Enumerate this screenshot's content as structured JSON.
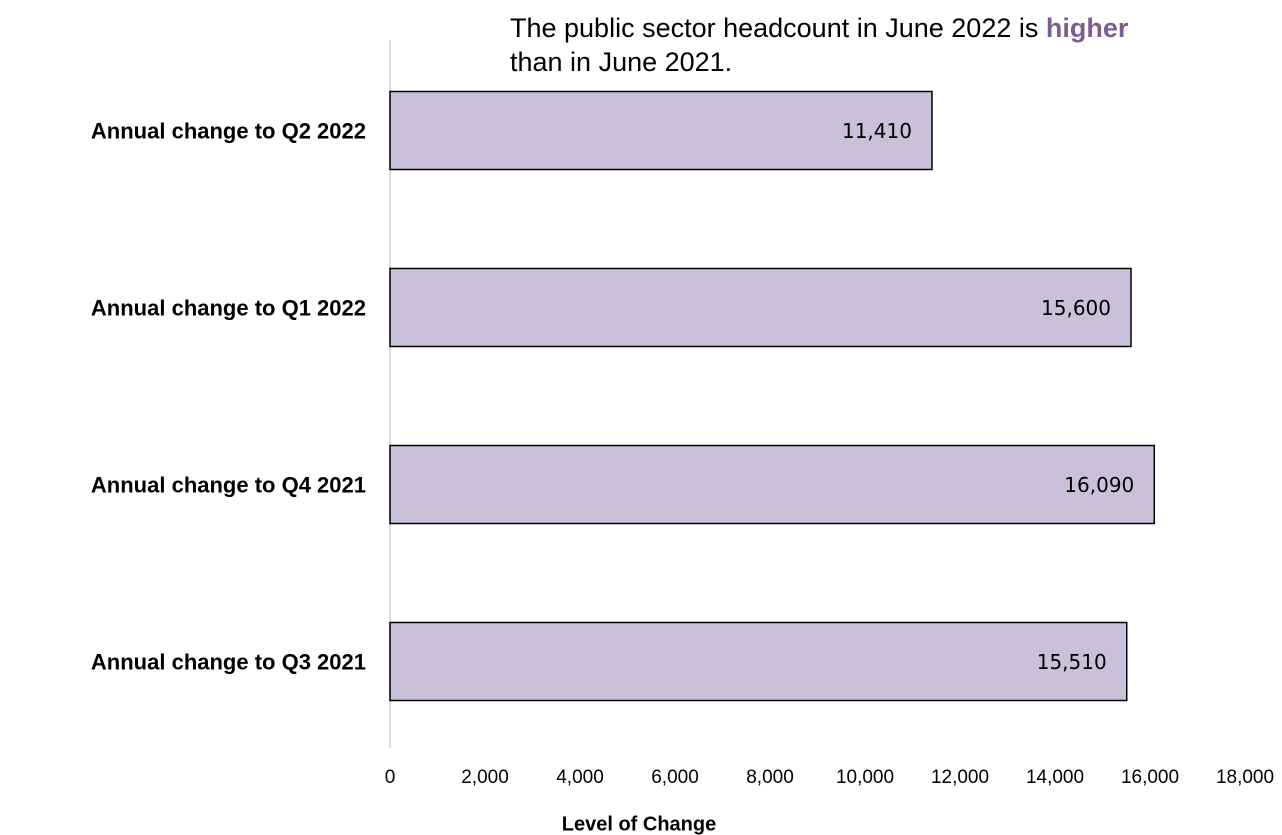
{
  "chart_data": {
    "type": "hbar",
    "title": {
      "before": "The public sector headcount in June 2022 is",
      "emphasis": "higher",
      "after": "than in June 2021."
    },
    "categories": [
      "Annual change to Q2 2022",
      "Annual change to Q1 2022",
      "Annual change to Q4 2021",
      "Annual change to Q3 2021"
    ],
    "values": [
      11410,
      15600,
      16090,
      15510
    ],
    "value_labels": [
      "11,410",
      "15,600",
      "16,090",
      "15,510"
    ],
    "color": "#cbc0da",
    "emphasis_color": "#7b5c93",
    "x_label": "Level of Change",
    "xlim": [
      0,
      18000
    ],
    "xticks": [
      0,
      {
        "value": 2000,
        "label": "2,000"
      },
      {
        "value": 4000,
        "label": "4,000"
      },
      {
        "value": 6000,
        "label": "6,000"
      },
      {
        "value": 8000,
        "label": "8,000"
      },
      {
        "value": 10000,
        "label": "10,000"
      },
      {
        "value": 12000,
        "label": "12,000"
      },
      {
        "value": 14000,
        "label": "14,000"
      },
      {
        "value": 16000,
        "label": "16,000"
      },
      {
        "value": 18000,
        "label": "18,000"
      }
    ],
    "grid": false
  }
}
